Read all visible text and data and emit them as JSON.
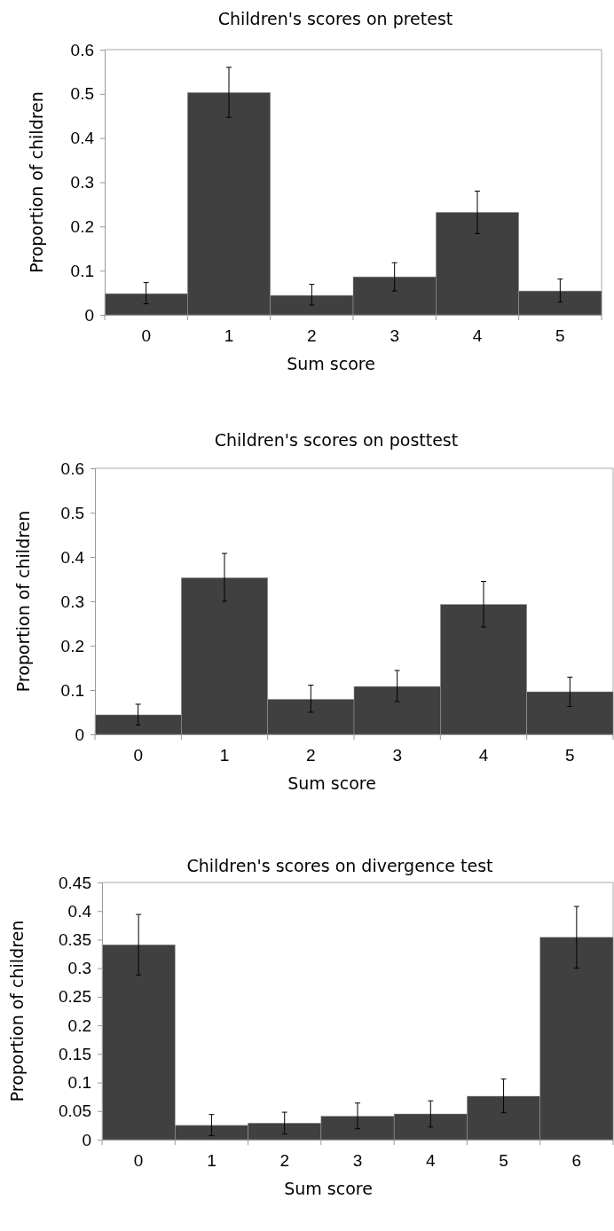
{
  "chart_data": [
    {
      "type": "bar",
      "title": "Children's scores on pretest",
      "xlabel": "Sum score",
      "ylabel": "Proportion of children",
      "categories": [
        "0",
        "1",
        "2",
        "3",
        "4",
        "5"
      ],
      "color": "#404040",
      "ylim": [
        0,
        0.6
      ],
      "yticks": [
        0,
        0.1,
        0.2,
        0.3,
        0.4,
        0.5,
        0.6
      ],
      "values": [
        0.048,
        0.503,
        0.044,
        0.086,
        0.232,
        0.054
      ],
      "errors": [
        [
          0.025,
          0.073
        ],
        [
          0.447,
          0.56
        ],
        [
          0.022,
          0.069
        ],
        [
          0.054,
          0.118
        ],
        [
          0.184,
          0.28
        ],
        [
          0.029,
          0.081
        ]
      ]
    },
    {
      "type": "bar",
      "title": "Children's scores on posttest",
      "xlabel": "Sum score",
      "ylabel": "Proportion of children",
      "categories": [
        "0",
        "1",
        "2",
        "3",
        "4",
        "5"
      ],
      "color": "#404040",
      "ylim": [
        0,
        0.6
      ],
      "yticks": [
        0,
        0.1,
        0.2,
        0.3,
        0.4,
        0.5,
        0.6
      ],
      "values": [
        0.044,
        0.353,
        0.079,
        0.108,
        0.293,
        0.096
      ],
      "errors": [
        [
          0.021,
          0.068
        ],
        [
          0.3,
          0.408
        ],
        [
          0.05,
          0.111
        ],
        [
          0.074,
          0.144
        ],
        [
          0.242,
          0.345
        ],
        [
          0.063,
          0.129
        ]
      ]
    },
    {
      "type": "bar",
      "title": "Children's scores on divergence test",
      "xlabel": "Sum score",
      "ylabel": "Proportion of children",
      "categories": [
        "0",
        "1",
        "2",
        "3",
        "4",
        "5",
        "6"
      ],
      "color": "#404040",
      "ylim": [
        0,
        0.45
      ],
      "yticks": [
        0,
        0.05,
        0.1,
        0.15,
        0.2,
        0.25,
        0.3,
        0.35,
        0.4,
        0.45
      ],
      "values": [
        0.341,
        0.025,
        0.029,
        0.041,
        0.045,
        0.076,
        0.354
      ],
      "errors": [
        [
          0.288,
          0.394
        ],
        [
          0.007,
          0.044
        ],
        [
          0.01,
          0.048
        ],
        [
          0.019,
          0.064
        ],
        [
          0.022,
          0.068
        ],
        [
          0.047,
          0.106
        ],
        [
          0.3,
          0.408
        ]
      ]
    }
  ]
}
